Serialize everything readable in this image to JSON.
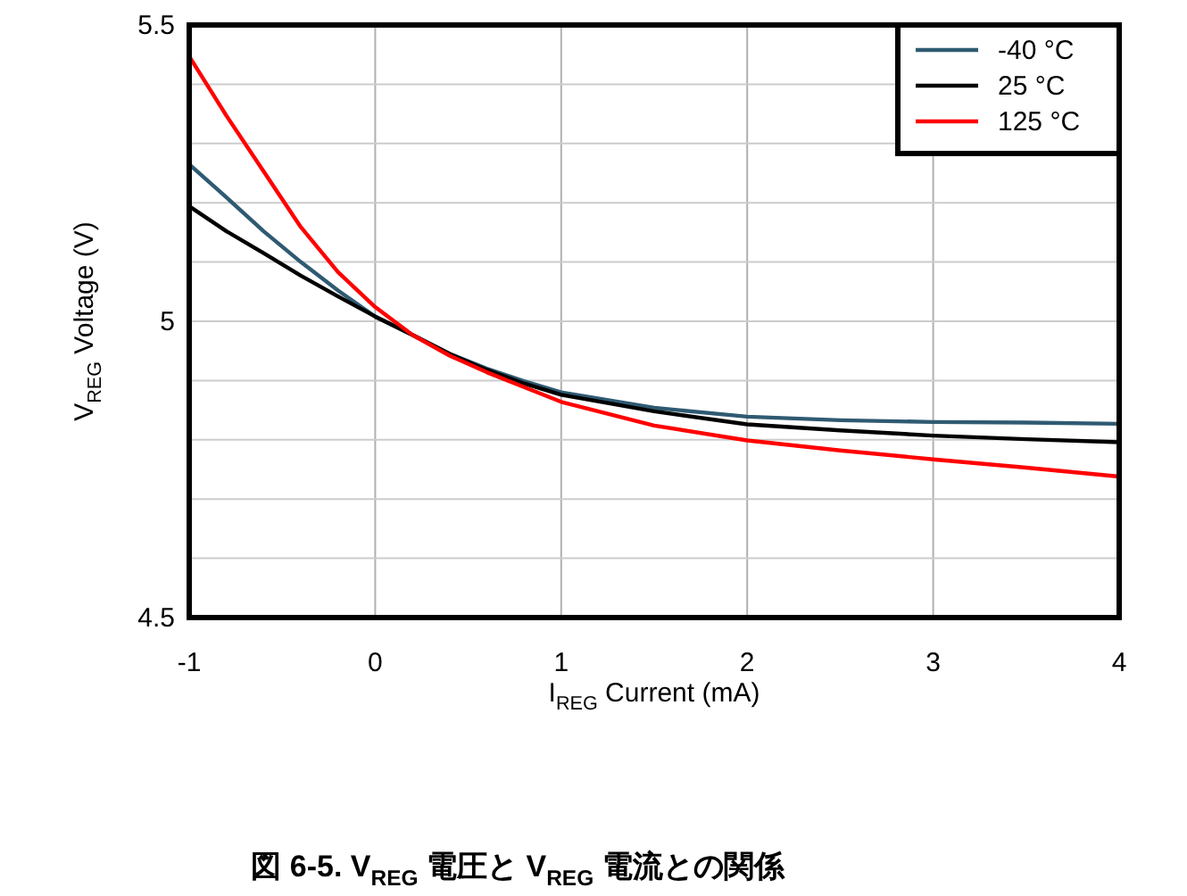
{
  "chart_data": {
    "type": "line",
    "title": "図 6-5. V$_{REG}$ 電圧と V$_{REG}$ 電流との関係",
    "xlabel": "I$_{REG}$ Current (mA)",
    "ylabel": "V$_{REG}$ Voltage (V)",
    "x": [
      -1,
      -0.8,
      -0.6,
      -0.4,
      -0.2,
      0,
      0.2,
      0.4,
      0.6,
      0.8,
      1,
      1.5,
      2,
      2.5,
      3,
      3.5,
      4
    ],
    "series": [
      {
        "name": "-40 °C",
        "color": "#2f5a72",
        "values": [
          5.265,
          5.209,
          5.152,
          5.1,
          5.052,
          5.008,
          4.977,
          4.945,
          4.92,
          4.899,
          4.88,
          4.854,
          4.839,
          4.833,
          4.83,
          4.829,
          4.827
        ]
      },
      {
        "name": "25 °C",
        "color": "#000000",
        "values": [
          5.194,
          5.152,
          5.115,
          5.077,
          5.042,
          5.008,
          4.977,
          4.945,
          4.918,
          4.895,
          4.876,
          4.848,
          4.826,
          4.816,
          4.807,
          4.801,
          4.796
        ]
      },
      {
        "name": "125 °C",
        "color": "#ff0000",
        "values": [
          5.447,
          5.347,
          5.253,
          5.159,
          5.083,
          5.024,
          4.977,
          4.942,
          4.914,
          4.889,
          4.864,
          4.824,
          4.799,
          4.782,
          4.767,
          4.753,
          4.738
        ]
      }
    ],
    "xlim": [
      -1,
      4
    ],
    "xticks": [
      -1,
      0,
      1,
      2,
      3,
      4
    ],
    "ylim": [
      4.5,
      5.5
    ],
    "yticks": [
      4.5,
      {
        "value": 4.6,
        "label": null
      },
      {
        "value": 4.7,
        "label": null
      },
      {
        "value": 4.8,
        "label": null
      },
      {
        "value": 4.9,
        "label": null
      },
      5,
      {
        "value": 5.1,
        "label": null
      },
      {
        "value": 5.2,
        "label": null
      },
      {
        "value": 5.3,
        "label": null
      },
      {
        "value": 5.4,
        "label": null
      },
      5.5
    ],
    "grid": true,
    "legend": "top right",
    "line_style": "solid",
    "marker": "none"
  }
}
